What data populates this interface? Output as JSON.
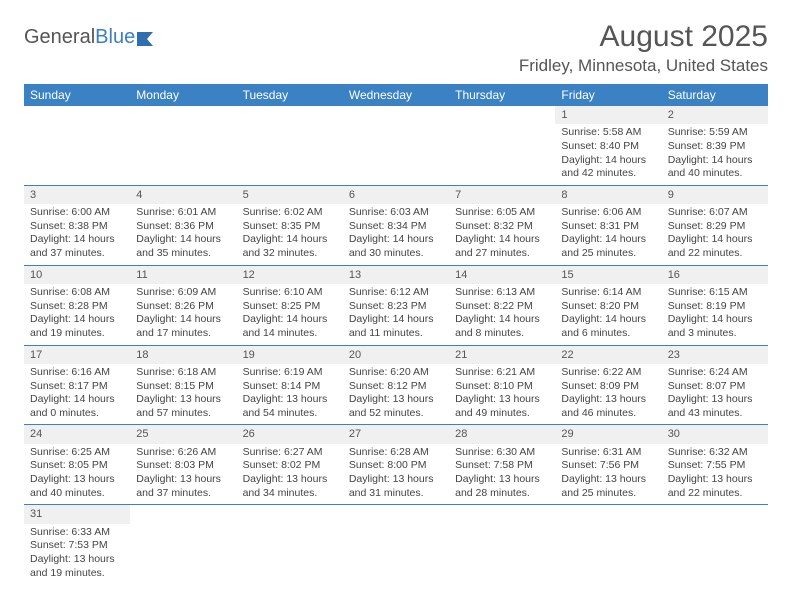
{
  "logo": {
    "part1": "General",
    "part2": "Blue"
  },
  "title": "August 2025",
  "location": "Fridley, Minnesota, United States",
  "dayHeaders": [
    "Sunday",
    "Monday",
    "Tuesday",
    "Wednesday",
    "Thursday",
    "Friday",
    "Saturday"
  ],
  "colors": {
    "headerBg": "#3b82c4",
    "headerText": "#ffffff",
    "daynumBg": "#f0f0f0",
    "cellBorder": "#3b7fc4",
    "text": "#444444"
  },
  "weeks": [
    [
      null,
      null,
      null,
      null,
      null,
      {
        "n": "1",
        "sr": "Sunrise: 5:58 AM",
        "ss": "Sunset: 8:40 PM",
        "dl": "Daylight: 14 hours and 42 minutes."
      },
      {
        "n": "2",
        "sr": "Sunrise: 5:59 AM",
        "ss": "Sunset: 8:39 PM",
        "dl": "Daylight: 14 hours and 40 minutes."
      }
    ],
    [
      {
        "n": "3",
        "sr": "Sunrise: 6:00 AM",
        "ss": "Sunset: 8:38 PM",
        "dl": "Daylight: 14 hours and 37 minutes."
      },
      {
        "n": "4",
        "sr": "Sunrise: 6:01 AM",
        "ss": "Sunset: 8:36 PM",
        "dl": "Daylight: 14 hours and 35 minutes."
      },
      {
        "n": "5",
        "sr": "Sunrise: 6:02 AM",
        "ss": "Sunset: 8:35 PM",
        "dl": "Daylight: 14 hours and 32 minutes."
      },
      {
        "n": "6",
        "sr": "Sunrise: 6:03 AM",
        "ss": "Sunset: 8:34 PM",
        "dl": "Daylight: 14 hours and 30 minutes."
      },
      {
        "n": "7",
        "sr": "Sunrise: 6:05 AM",
        "ss": "Sunset: 8:32 PM",
        "dl": "Daylight: 14 hours and 27 minutes."
      },
      {
        "n": "8",
        "sr": "Sunrise: 6:06 AM",
        "ss": "Sunset: 8:31 PM",
        "dl": "Daylight: 14 hours and 25 minutes."
      },
      {
        "n": "9",
        "sr": "Sunrise: 6:07 AM",
        "ss": "Sunset: 8:29 PM",
        "dl": "Daylight: 14 hours and 22 minutes."
      }
    ],
    [
      {
        "n": "10",
        "sr": "Sunrise: 6:08 AM",
        "ss": "Sunset: 8:28 PM",
        "dl": "Daylight: 14 hours and 19 minutes."
      },
      {
        "n": "11",
        "sr": "Sunrise: 6:09 AM",
        "ss": "Sunset: 8:26 PM",
        "dl": "Daylight: 14 hours and 17 minutes."
      },
      {
        "n": "12",
        "sr": "Sunrise: 6:10 AM",
        "ss": "Sunset: 8:25 PM",
        "dl": "Daylight: 14 hours and 14 minutes."
      },
      {
        "n": "13",
        "sr": "Sunrise: 6:12 AM",
        "ss": "Sunset: 8:23 PM",
        "dl": "Daylight: 14 hours and 11 minutes."
      },
      {
        "n": "14",
        "sr": "Sunrise: 6:13 AM",
        "ss": "Sunset: 8:22 PM",
        "dl": "Daylight: 14 hours and 8 minutes."
      },
      {
        "n": "15",
        "sr": "Sunrise: 6:14 AM",
        "ss": "Sunset: 8:20 PM",
        "dl": "Daylight: 14 hours and 6 minutes."
      },
      {
        "n": "16",
        "sr": "Sunrise: 6:15 AM",
        "ss": "Sunset: 8:19 PM",
        "dl": "Daylight: 14 hours and 3 minutes."
      }
    ],
    [
      {
        "n": "17",
        "sr": "Sunrise: 6:16 AM",
        "ss": "Sunset: 8:17 PM",
        "dl": "Daylight: 14 hours and 0 minutes."
      },
      {
        "n": "18",
        "sr": "Sunrise: 6:18 AM",
        "ss": "Sunset: 8:15 PM",
        "dl": "Daylight: 13 hours and 57 minutes."
      },
      {
        "n": "19",
        "sr": "Sunrise: 6:19 AM",
        "ss": "Sunset: 8:14 PM",
        "dl": "Daylight: 13 hours and 54 minutes."
      },
      {
        "n": "20",
        "sr": "Sunrise: 6:20 AM",
        "ss": "Sunset: 8:12 PM",
        "dl": "Daylight: 13 hours and 52 minutes."
      },
      {
        "n": "21",
        "sr": "Sunrise: 6:21 AM",
        "ss": "Sunset: 8:10 PM",
        "dl": "Daylight: 13 hours and 49 minutes."
      },
      {
        "n": "22",
        "sr": "Sunrise: 6:22 AM",
        "ss": "Sunset: 8:09 PM",
        "dl": "Daylight: 13 hours and 46 minutes."
      },
      {
        "n": "23",
        "sr": "Sunrise: 6:24 AM",
        "ss": "Sunset: 8:07 PM",
        "dl": "Daylight: 13 hours and 43 minutes."
      }
    ],
    [
      {
        "n": "24",
        "sr": "Sunrise: 6:25 AM",
        "ss": "Sunset: 8:05 PM",
        "dl": "Daylight: 13 hours and 40 minutes."
      },
      {
        "n": "25",
        "sr": "Sunrise: 6:26 AM",
        "ss": "Sunset: 8:03 PM",
        "dl": "Daylight: 13 hours and 37 minutes."
      },
      {
        "n": "26",
        "sr": "Sunrise: 6:27 AM",
        "ss": "Sunset: 8:02 PM",
        "dl": "Daylight: 13 hours and 34 minutes."
      },
      {
        "n": "27",
        "sr": "Sunrise: 6:28 AM",
        "ss": "Sunset: 8:00 PM",
        "dl": "Daylight: 13 hours and 31 minutes."
      },
      {
        "n": "28",
        "sr": "Sunrise: 6:30 AM",
        "ss": "Sunset: 7:58 PM",
        "dl": "Daylight: 13 hours and 28 minutes."
      },
      {
        "n": "29",
        "sr": "Sunrise: 6:31 AM",
        "ss": "Sunset: 7:56 PM",
        "dl": "Daylight: 13 hours and 25 minutes."
      },
      {
        "n": "30",
        "sr": "Sunrise: 6:32 AM",
        "ss": "Sunset: 7:55 PM",
        "dl": "Daylight: 13 hours and 22 minutes."
      }
    ],
    [
      {
        "n": "31",
        "sr": "Sunrise: 6:33 AM",
        "ss": "Sunset: 7:53 PM",
        "dl": "Daylight: 13 hours and 19 minutes."
      },
      null,
      null,
      null,
      null,
      null,
      null
    ]
  ]
}
